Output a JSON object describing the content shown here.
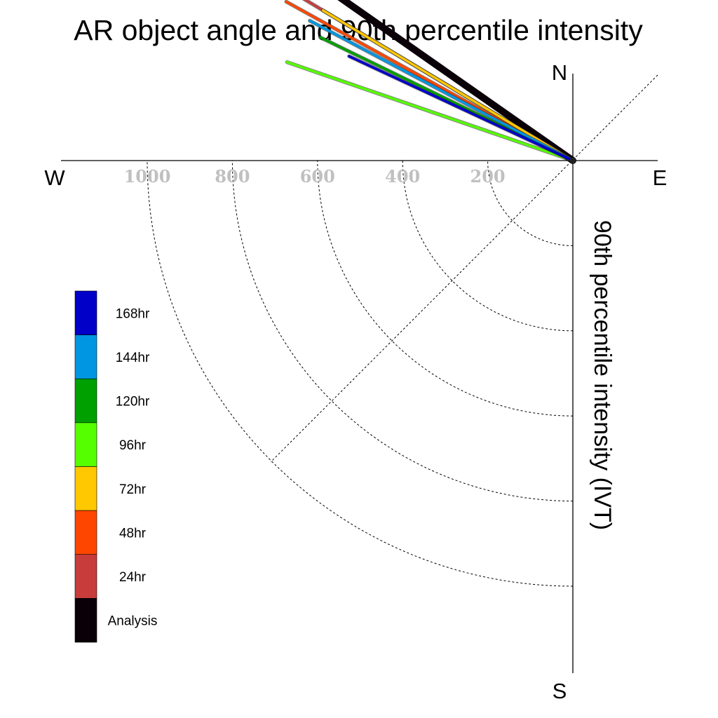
{
  "chart_data": {
    "type": "polar",
    "title": "AR object angle and 90th percentile intensity",
    "radial_label": "90th percentile intensity (IVT)",
    "directions": {
      "north": "N",
      "south": "S",
      "east": "E",
      "west": "W"
    },
    "radial_ticks": [
      200,
      400,
      600,
      800,
      1000
    ],
    "radial_tick_labels": [
      "200",
      "400",
      "600",
      "800",
      "1000"
    ],
    "grid": true,
    "legend_position": "left",
    "series": [
      {
        "name": "168hr",
        "color": "#0000c8",
        "angle_deg": 205,
        "intensity": 580
      },
      {
        "name": "144hr",
        "color": "#0096e1",
        "angle_deg": 208,
        "intensity": 700
      },
      {
        "name": "120hr",
        "color": "#00a000",
        "angle_deg": 206,
        "intensity": 660
      },
      {
        "name": "96hr",
        "color": "#55ff00",
        "angle_deg": 199,
        "intensity": 710
      },
      {
        "name": "72hr",
        "color": "#ffc800",
        "angle_deg": 211,
        "intensity": 685
      },
      {
        "name": "48hr",
        "color": "#ff4600",
        "angle_deg": 209,
        "intensity": 770
      },
      {
        "name": "24hr",
        "color": "#c83c3c",
        "angle_deg": 211,
        "intensity": 760
      },
      {
        "name": "Analysis",
        "color": "#0a0008",
        "angle_deg": 215,
        "intensity": 865
      }
    ]
  }
}
